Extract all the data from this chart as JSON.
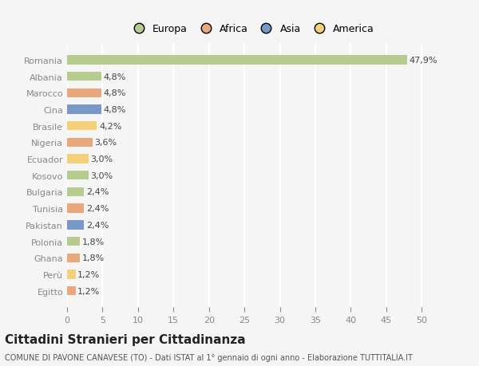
{
  "categories": [
    "Romania",
    "Albania",
    "Marocco",
    "Cina",
    "Brasile",
    "Nigeria",
    "Ecuador",
    "Kosovo",
    "Bulgaria",
    "Tunisia",
    "Pakistan",
    "Polonia",
    "Ghana",
    "Perù",
    "Egitto"
  ],
  "values": [
    47.9,
    4.8,
    4.8,
    4.8,
    4.2,
    3.6,
    3.0,
    3.0,
    2.4,
    2.4,
    2.4,
    1.8,
    1.8,
    1.2,
    1.2
  ],
  "labels": [
    "47,9%",
    "4,8%",
    "4,8%",
    "4,8%",
    "4,2%",
    "3,6%",
    "3,0%",
    "3,0%",
    "2,4%",
    "2,4%",
    "2,4%",
    "1,8%",
    "1,8%",
    "1,2%",
    "1,2%"
  ],
  "continents": [
    "Europa",
    "Europa",
    "Africa",
    "Asia",
    "America",
    "Africa",
    "America",
    "Europa",
    "Europa",
    "Africa",
    "Asia",
    "Europa",
    "Africa",
    "America",
    "Africa"
  ],
  "continent_colors": {
    "Europa": "#b5cc8e",
    "Africa": "#e8a87c",
    "Asia": "#7899c8",
    "America": "#f5d07a"
  },
  "legend_order": [
    "Europa",
    "Africa",
    "Asia",
    "America"
  ],
  "title": "Cittadini Stranieri per Cittadinanza",
  "subtitle": "COMUNE DI PAVONE CANAVESE (TO) - Dati ISTAT al 1° gennaio di ogni anno - Elaborazione TUTTITALIA.IT",
  "xlim": [
    0,
    52
  ],
  "xticks": [
    0,
    5,
    10,
    15,
    20,
    25,
    30,
    35,
    40,
    45,
    50
  ],
  "background_color": "#f5f5f5",
  "grid_color": "#ffffff",
  "bar_height": 0.55,
  "label_fontsize": 8,
  "tick_fontsize": 8,
  "title_fontsize": 11,
  "subtitle_fontsize": 7
}
